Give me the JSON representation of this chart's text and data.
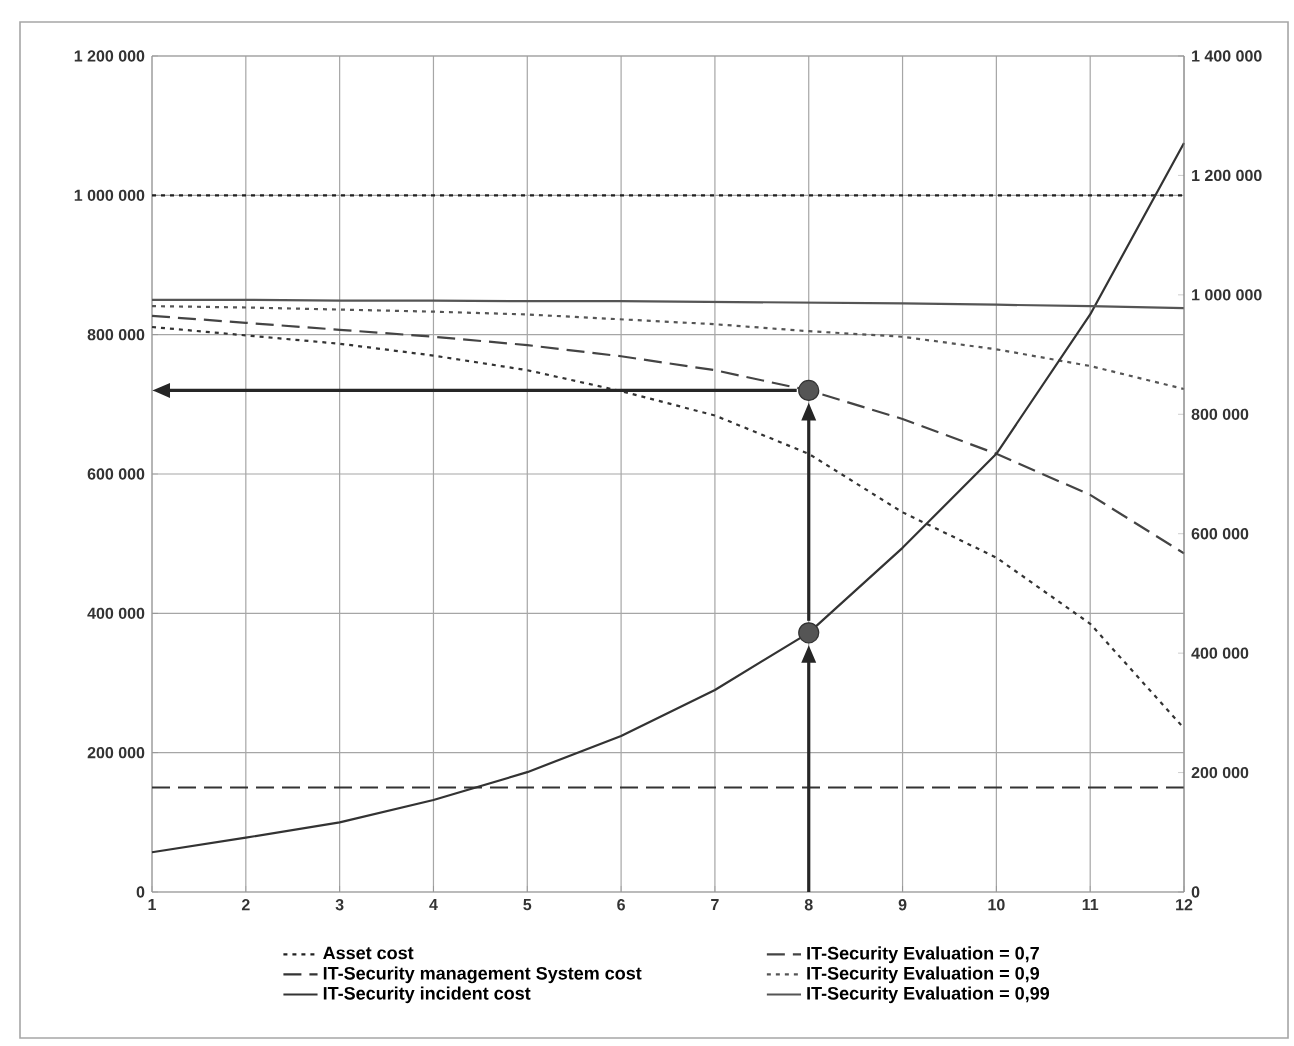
{
  "chart_data": {
    "type": "line",
    "x": [
      1,
      2,
      3,
      4,
      5,
      6,
      7,
      8,
      9,
      10,
      11,
      12
    ],
    "series": [
      {
        "name": "Asset cost",
        "color": "#222222",
        "line_style": "dotted",
        "values": [
          1000000,
          1000000,
          1000000,
          1000000,
          1000000,
          1000000,
          1000000,
          1000000,
          1000000,
          1000000,
          1000000,
          1000000
        ]
      },
      {
        "name": "IT-Security Evaluation = 0,7",
        "color": "#444444",
        "line_style": "dashed",
        "values": [
          827000,
          817000,
          807000,
          797000,
          785000,
          769000,
          749000,
          720000,
          679000,
          629000,
          570000,
          486000
        ]
      },
      {
        "name": "IT-Security management System cost",
        "color": "#333333",
        "line_style": "dashed",
        "values": [
          150000,
          150000,
          150000,
          150000,
          150000,
          150000,
          150000,
          150000,
          150000,
          150000,
          150000,
          150000
        ]
      },
      {
        "name": "IT-Security Evaluation = 0,9",
        "color": "#555555",
        "line_style": "dotted",
        "values": [
          841000,
          839000,
          836000,
          833000,
          829000,
          822000,
          815000,
          805000,
          797000,
          779000,
          755000,
          722000
        ]
      },
      {
        "name": "IT-Security incident cost",
        "color": "#333333",
        "line_style": "solid",
        "values": [
          57000,
          78000,
          100000,
          132000,
          172000,
          224000,
          290000,
          372000,
          494000,
          629000,
          829000,
          1075000
        ]
      },
      {
        "name": "IT-Security Evaluation = 0,99",
        "color": "#555555",
        "line_style": "solid",
        "values": [
          850000,
          850000,
          849000,
          849000,
          848000,
          848000,
          847000,
          846000,
          845000,
          843000,
          841000,
          838000
        ]
      },
      {
        "color": "#333333",
        "line_style": "dotted",
        "values": [
          811000,
          799000,
          787000,
          770000,
          749000,
          719000,
          684000,
          629000,
          545000,
          480000,
          385000,
          235000
        ]
      },
      {
        "type": "scatter",
        "color": "#555555",
        "marker": "circle",
        "x": [
          8,
          8
        ],
        "values": [
          372000,
          720000
        ]
      }
    ],
    "xlim": [
      1,
      12
    ],
    "xticks": [
      1,
      2,
      3,
      4,
      5,
      6,
      7,
      8,
      9,
      10,
      11,
      12
    ],
    "ylim": [
      0,
      1200000
    ],
    "yticks": [
      {
        "value": 0,
        "label": "0"
      },
      {
        "value": 200000,
        "label": "200 000"
      },
      {
        "value": 400000,
        "label": "400 000"
      },
      {
        "value": 600000,
        "label": "600 000"
      },
      {
        "value": 800000,
        "label": "800 000"
      },
      {
        "value": 1000000,
        "label": "1 000 000"
      },
      {
        "value": 1200000,
        "label": "1 200 000"
      }
    ],
    "y2lim": [
      0,
      1400000
    ],
    "y2ticks": [
      {
        "value": 0,
        "label": "0"
      },
      {
        "value": 200000,
        "label": "200 000"
      },
      {
        "value": 400000,
        "label": "400 000"
      },
      {
        "value": 600000,
        "label": "600 000"
      },
      {
        "value": 800000,
        "label": "800 000"
      },
      {
        "value": 1000000,
        "label": "1 000 000"
      },
      {
        "value": 1200000,
        "label": "1 200 000"
      },
      {
        "value": 1400000,
        "label": "1 400 000"
      }
    ],
    "grid": true,
    "legend": "bottom"
  }
}
